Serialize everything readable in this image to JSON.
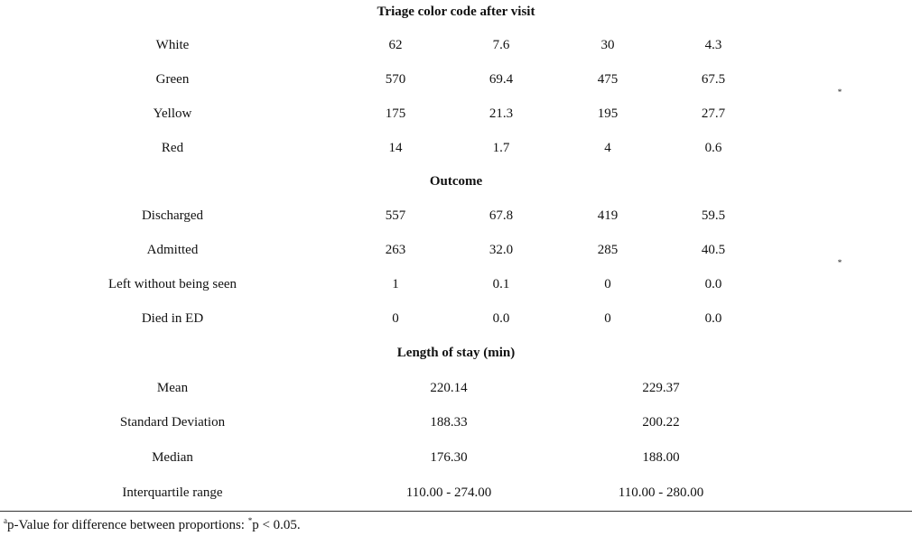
{
  "sections": {
    "triage": {
      "heading": "Triage color code after visit",
      "rows": [
        {
          "label": "White",
          "c1": "62",
          "c2": "7.6",
          "c3": "30",
          "c4": "4.3"
        },
        {
          "label": "Green",
          "c1": "570",
          "c2": "69.4",
          "c3": "475",
          "c4": "67.5"
        },
        {
          "label": "Yellow",
          "c1": "175",
          "c2": "21.3",
          "c3": "195",
          "c4": "27.7"
        },
        {
          "label": "Red",
          "c1": "14",
          "c2": "1.7",
          "c3": "4",
          "c4": "0.6"
        }
      ],
      "marker": "*"
    },
    "outcome": {
      "heading": "Outcome",
      "rows": [
        {
          "label": "Discharged",
          "c1": "557",
          "c2": "67.8",
          "c3": "419",
          "c4": "59.5"
        },
        {
          "label": "Admitted",
          "c1": "263",
          "c2": "32.0",
          "c3": "285",
          "c4": "40.5"
        },
        {
          "label": "Left without being seen",
          "c1": "1",
          "c2": "0.1",
          "c3": "0",
          "c4": "0.0"
        },
        {
          "label": "Died in ED",
          "c1": "0",
          "c2": "0.0",
          "c3": "0",
          "c4": "0.0"
        }
      ],
      "marker": "*"
    },
    "los": {
      "heading": "Length of stay (min)",
      "rows": [
        {
          "label": "Mean",
          "g1": "220.14",
          "g2": "229.37"
        },
        {
          "label": "Standard Deviation",
          "g1": "188.33",
          "g2": "200.22"
        },
        {
          "label": "Median",
          "g1": "176.30",
          "g2": "188.00"
        },
        {
          "label": "Interquartile range",
          "g1": "110.00 - 274.00",
          "g2": "110.00 - 280.00"
        }
      ]
    }
  },
  "footnote": {
    "sup_a": "a",
    "text_a": "p-Value for difference between proportions: ",
    "sup_star": "*",
    "text_b": "p < 0.05."
  }
}
